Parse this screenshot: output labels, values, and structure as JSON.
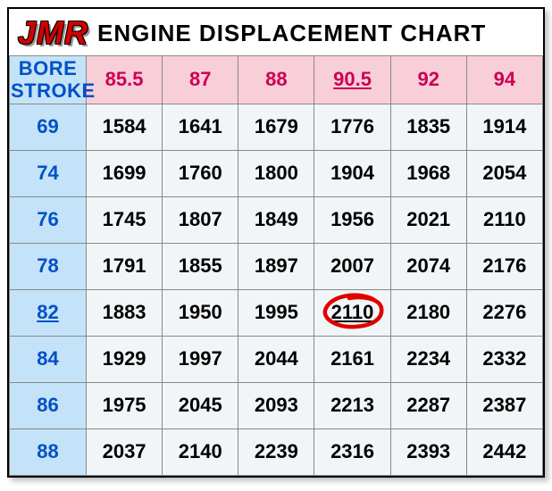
{
  "header": {
    "logo_text": "JMR",
    "title_text": "ENGINE DISPLACEMENT CHART"
  },
  "table": {
    "corner_top": "BORE",
    "corner_bottom": "STROKE",
    "bore_columns": [
      "85.5",
      "87",
      "88",
      "90.5",
      "92",
      "94"
    ],
    "stroke_rows": [
      "69",
      "74",
      "76",
      "78",
      "82",
      "84",
      "86",
      "88"
    ],
    "highlight_bore_index": 3,
    "highlight_stroke_index": 4,
    "circled_cell": {
      "row": 4,
      "col": 3
    },
    "data": [
      [
        "1584",
        "1641",
        "1679",
        "1776",
        "1835",
        "1914"
      ],
      [
        "1699",
        "1760",
        "1800",
        "1904",
        "1968",
        "2054"
      ],
      [
        "1745",
        "1807",
        "1849",
        "1956",
        "2021",
        "2110"
      ],
      [
        "1791",
        "1855",
        "1897",
        "2007",
        "2074",
        "2176"
      ],
      [
        "1883",
        "1950",
        "1995",
        "2110",
        "2180",
        "2276"
      ],
      [
        "1929",
        "1997",
        "2044",
        "2161",
        "2234",
        "2332"
      ],
      [
        "1975",
        "2045",
        "2093",
        "2213",
        "2287",
        "2387"
      ],
      [
        "2037",
        "2140",
        "2239",
        "2316",
        "2393",
        "2442"
      ]
    ]
  },
  "style": {
    "header_bore_bg": "#f8cfd8",
    "header_stroke_bg": "#c4e3f8",
    "data_cell_bg": "#f2f5f7",
    "bore_text_color": "#cc0055",
    "stroke_text_color": "#0050c8",
    "circle_color": "#e00000",
    "logo_color": "#d40000",
    "border_color": "#888888"
  }
}
